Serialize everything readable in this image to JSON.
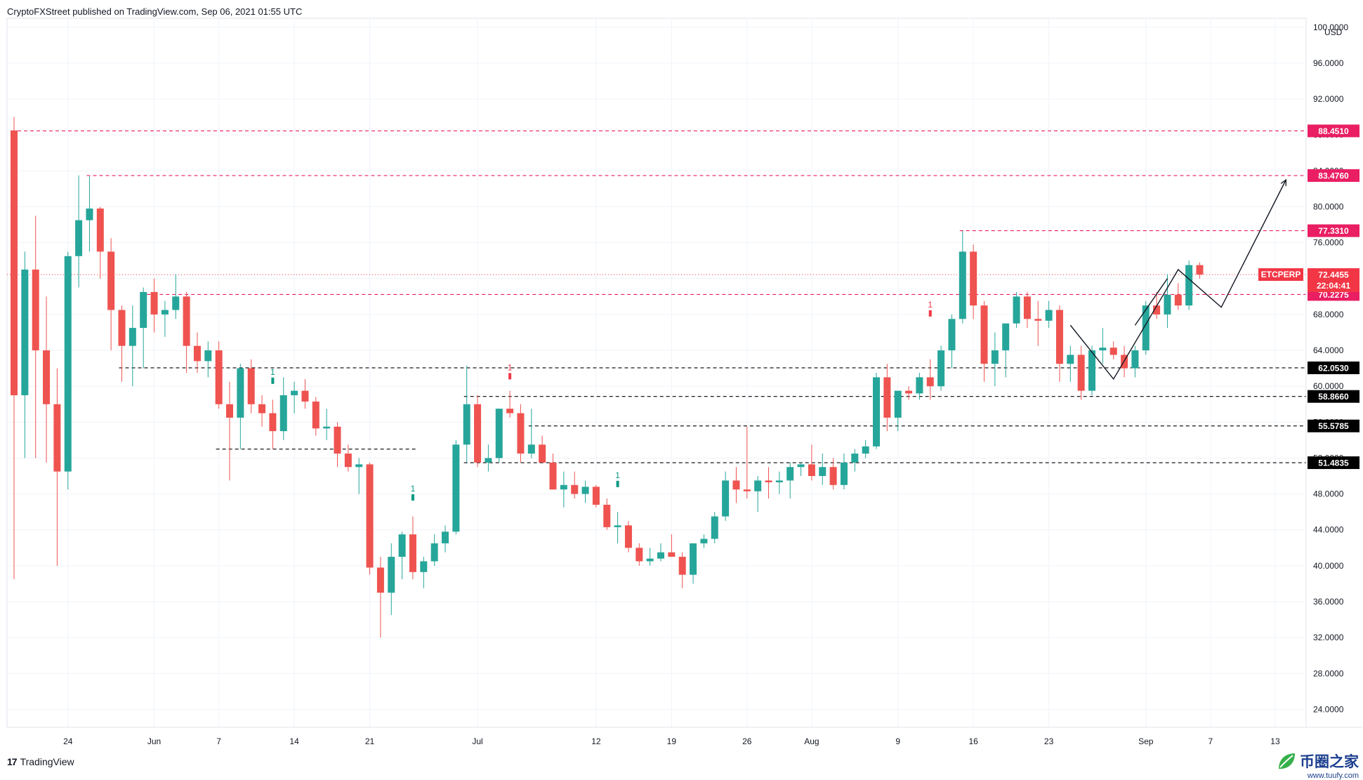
{
  "header": {
    "publisher": "CryptoFXStreet published on TradingView.com, Sep 06, 2021 01:55 UTC"
  },
  "footer": {
    "brand": "TradingView",
    "watermark": "币圈之家",
    "watermark_url": "www.tuufy.com"
  },
  "chart_data": {
    "type": "candlestick",
    "symbol": "ETCPERP",
    "currency": "USD",
    "countdown": "22:04:41",
    "last_price": 72.4455,
    "ylim": [
      22,
      101
    ],
    "y_ticks": [
      24,
      28,
      32,
      36,
      40,
      44,
      48,
      52,
      56,
      60,
      64,
      68,
      72,
      76,
      80,
      84,
      88,
      92,
      96,
      100
    ],
    "y_tick_labels": [
      "24.0000",
      "28.0000",
      "32.0000",
      "36.0000",
      "40.0000",
      "44.0000",
      "48.0000",
      "52.0000",
      "56.0000",
      "60.0000",
      "64.0000",
      "68.0000",
      "72.0000",
      "76.0000",
      "80.0000",
      "84.0000",
      "88.0000",
      "92.0000",
      "96.0000",
      "100.0000"
    ],
    "x_labels": [
      {
        "date": "2021-05-24",
        "label": "24"
      },
      {
        "date": "2021-06-01",
        "label": "Jun"
      },
      {
        "date": "2021-06-07",
        "label": "7"
      },
      {
        "date": "2021-06-14",
        "label": "14"
      },
      {
        "date": "2021-06-21",
        "label": "21"
      },
      {
        "date": "2021-07-01",
        "label": "Jul"
      },
      {
        "date": "2021-07-12",
        "label": "12"
      },
      {
        "date": "2021-07-19",
        "label": "19"
      },
      {
        "date": "2021-07-26",
        "label": "26"
      },
      {
        "date": "2021-08-01",
        "label": "Aug"
      },
      {
        "date": "2021-08-09",
        "label": "9"
      },
      {
        "date": "2021-08-16",
        "label": "16"
      },
      {
        "date": "2021-08-23",
        "label": "23"
      },
      {
        "date": "2021-09-01",
        "label": "Sep"
      },
      {
        "date": "2021-09-07",
        "label": "7"
      },
      {
        "date": "2021-09-13",
        "label": "13"
      }
    ],
    "candles": [
      {
        "date": "2021-05-19",
        "o": 88.5,
        "h": 90.0,
        "l": 38.5,
        "c": 59.0
      },
      {
        "date": "2021-05-20",
        "o": 59.0,
        "h": 75.0,
        "l": 52.0,
        "c": 73.0
      },
      {
        "date": "2021-05-21",
        "o": 73.0,
        "h": 79.0,
        "l": 52.0,
        "c": 64.0
      },
      {
        "date": "2021-05-22",
        "o": 64.0,
        "h": 70.0,
        "l": 51.5,
        "c": 58.0
      },
      {
        "date": "2021-05-23",
        "o": 58.0,
        "h": 62.0,
        "l": 40.0,
        "c": 50.5
      },
      {
        "date": "2021-05-24",
        "o": 50.5,
        "h": 75.0,
        "l": 48.5,
        "c": 74.5
      },
      {
        "date": "2021-05-25",
        "o": 74.5,
        "h": 83.5,
        "l": 71.0,
        "c": 78.5
      },
      {
        "date": "2021-05-26",
        "o": 78.5,
        "h": 83.4,
        "l": 75.0,
        "c": 79.8
      },
      {
        "date": "2021-05-27",
        "o": 79.8,
        "h": 80.0,
        "l": 72.0,
        "c": 75.0
      },
      {
        "date": "2021-05-28",
        "o": 75.0,
        "h": 76.5,
        "l": 64.0,
        "c": 68.5
      },
      {
        "date": "2021-05-29",
        "o": 68.5,
        "h": 69.0,
        "l": 60.5,
        "c": 64.5
      },
      {
        "date": "2021-05-30",
        "o": 64.5,
        "h": 69.0,
        "l": 60.0,
        "c": 66.5
      },
      {
        "date": "2021-05-31",
        "o": 66.5,
        "h": 71.0,
        "l": 62.0,
        "c": 70.5
      },
      {
        "date": "2021-06-01",
        "o": 70.5,
        "h": 72.0,
        "l": 66.0,
        "c": 68.0
      },
      {
        "date": "2021-06-02",
        "o": 68.0,
        "h": 69.5,
        "l": 65.5,
        "c": 68.5
      },
      {
        "date": "2021-06-03",
        "o": 68.5,
        "h": 72.5,
        "l": 67.5,
        "c": 70.0
      },
      {
        "date": "2021-06-04",
        "o": 70.0,
        "h": 70.5,
        "l": 61.5,
        "c": 64.5
      },
      {
        "date": "2021-06-05",
        "o": 64.5,
        "h": 66.0,
        "l": 61.5,
        "c": 62.8
      },
      {
        "date": "2021-06-06",
        "o": 62.8,
        "h": 65.0,
        "l": 61.0,
        "c": 64.0
      },
      {
        "date": "2021-06-07",
        "o": 64.0,
        "h": 65.0,
        "l": 57.5,
        "c": 58.0
      },
      {
        "date": "2021-06-08",
        "o": 58.0,
        "h": 60.5,
        "l": 49.5,
        "c": 56.5
      },
      {
        "date": "2021-06-09",
        "o": 56.5,
        "h": 62.5,
        "l": 53.0,
        "c": 62.0
      },
      {
        "date": "2021-06-10",
        "o": 62.0,
        "h": 63.0,
        "l": 57.0,
        "c": 58.0
      },
      {
        "date": "2021-06-11",
        "o": 58.0,
        "h": 59.0,
        "l": 55.5,
        "c": 57.0
      },
      {
        "date": "2021-06-12",
        "o": 57.0,
        "h": 58.5,
        "l": 53.0,
        "c": 55.0
      },
      {
        "date": "2021-06-13",
        "o": 55.0,
        "h": 61.0,
        "l": 54.0,
        "c": 59.0
      },
      {
        "date": "2021-06-14",
        "o": 59.0,
        "h": 60.5,
        "l": 57.0,
        "c": 59.5
      },
      {
        "date": "2021-06-15",
        "o": 59.5,
        "h": 60.8,
        "l": 57.5,
        "c": 58.3
      },
      {
        "date": "2021-06-16",
        "o": 58.3,
        "h": 58.8,
        "l": 54.5,
        "c": 55.3
      },
      {
        "date": "2021-06-17",
        "o": 55.3,
        "h": 57.5,
        "l": 54.0,
        "c": 55.5
      },
      {
        "date": "2021-06-18",
        "o": 55.5,
        "h": 56.0,
        "l": 51.0,
        "c": 52.5
      },
      {
        "date": "2021-06-19",
        "o": 52.5,
        "h": 53.5,
        "l": 50.5,
        "c": 51.0
      },
      {
        "date": "2021-06-20",
        "o": 51.0,
        "h": 52.0,
        "l": 48.0,
        "c": 51.3
      },
      {
        "date": "2021-06-21",
        "o": 51.3,
        "h": 51.5,
        "l": 39.0,
        "c": 39.8
      },
      {
        "date": "2021-06-22",
        "o": 39.8,
        "h": 41.0,
        "l": 32.0,
        "c": 37.0
      },
      {
        "date": "2021-06-23",
        "o": 37.0,
        "h": 42.5,
        "l": 34.5,
        "c": 41.0
      },
      {
        "date": "2021-06-24",
        "o": 41.0,
        "h": 43.8,
        "l": 38.5,
        "c": 43.5
      },
      {
        "date": "2021-06-25",
        "o": 43.5,
        "h": 45.5,
        "l": 38.5,
        "c": 39.3
      },
      {
        "date": "2021-06-26",
        "o": 39.3,
        "h": 41.0,
        "l": 37.5,
        "c": 40.5
      },
      {
        "date": "2021-06-27",
        "o": 40.5,
        "h": 43.5,
        "l": 40.0,
        "c": 42.5
      },
      {
        "date": "2021-06-28",
        "o": 42.5,
        "h": 44.5,
        "l": 41.5,
        "c": 43.8
      },
      {
        "date": "2021-06-29",
        "o": 43.8,
        "h": 54.0,
        "l": 43.5,
        "c": 53.5
      },
      {
        "date": "2021-06-30",
        "o": 53.5,
        "h": 62.3,
        "l": 51.5,
        "c": 58.0
      },
      {
        "date": "2021-07-01",
        "o": 58.0,
        "h": 59.0,
        "l": 51.0,
        "c": 51.5
      },
      {
        "date": "2021-07-02",
        "o": 51.5,
        "h": 53.5,
        "l": 50.5,
        "c": 52.0
      },
      {
        "date": "2021-07-03",
        "o": 52.0,
        "h": 57.5,
        "l": 51.5,
        "c": 57.5
      },
      {
        "date": "2021-07-04",
        "o": 57.5,
        "h": 59.5,
        "l": 56.5,
        "c": 57.0
      },
      {
        "date": "2021-07-05",
        "o": 57.0,
        "h": 58.0,
        "l": 51.5,
        "c": 52.5
      },
      {
        "date": "2021-07-06",
        "o": 52.5,
        "h": 57.5,
        "l": 52.0,
        "c": 53.5
      },
      {
        "date": "2021-07-07",
        "o": 53.5,
        "h": 54.5,
        "l": 51.5,
        "c": 51.5
      },
      {
        "date": "2021-07-08",
        "o": 51.5,
        "h": 52.5,
        "l": 48.5,
        "c": 48.5
      },
      {
        "date": "2021-07-09",
        "o": 48.5,
        "h": 50.5,
        "l": 46.5,
        "c": 49.0
      },
      {
        "date": "2021-07-10",
        "o": 49.0,
        "h": 50.5,
        "l": 47.5,
        "c": 48.0
      },
      {
        "date": "2021-07-11",
        "o": 48.0,
        "h": 49.5,
        "l": 47.0,
        "c": 48.8
      },
      {
        "date": "2021-07-12",
        "o": 48.8,
        "h": 49.0,
        "l": 46.5,
        "c": 46.8
      },
      {
        "date": "2021-07-13",
        "o": 46.8,
        "h": 47.5,
        "l": 44.0,
        "c": 44.3
      },
      {
        "date": "2021-07-14",
        "o": 44.3,
        "h": 46.0,
        "l": 42.5,
        "c": 44.5
      },
      {
        "date": "2021-07-15",
        "o": 44.5,
        "h": 45.0,
        "l": 41.5,
        "c": 42.0
      },
      {
        "date": "2021-07-16",
        "o": 42.0,
        "h": 42.5,
        "l": 40.0,
        "c": 40.5
      },
      {
        "date": "2021-07-17",
        "o": 40.5,
        "h": 42.0,
        "l": 40.0,
        "c": 40.8
      },
      {
        "date": "2021-07-18",
        "o": 40.8,
        "h": 42.5,
        "l": 40.5,
        "c": 41.5
      },
      {
        "date": "2021-07-19",
        "o": 41.5,
        "h": 43.5,
        "l": 41.0,
        "c": 41.0
      },
      {
        "date": "2021-07-20",
        "o": 41.0,
        "h": 41.5,
        "l": 37.5,
        "c": 39.0
      },
      {
        "date": "2021-07-21",
        "o": 39.0,
        "h": 42.5,
        "l": 38.0,
        "c": 42.5
      },
      {
        "date": "2021-07-22",
        "o": 42.5,
        "h": 43.5,
        "l": 42.0,
        "c": 43.0
      },
      {
        "date": "2021-07-23",
        "o": 43.0,
        "h": 46.0,
        "l": 42.5,
        "c": 45.5
      },
      {
        "date": "2021-07-24",
        "o": 45.5,
        "h": 50.5,
        "l": 45.0,
        "c": 49.5
      },
      {
        "date": "2021-07-25",
        "o": 49.5,
        "h": 51.0,
        "l": 47.0,
        "c": 48.5
      },
      {
        "date": "2021-07-26",
        "o": 48.5,
        "h": 55.5,
        "l": 47.5,
        "c": 48.3
      },
      {
        "date": "2021-07-27",
        "o": 48.3,
        "h": 50.0,
        "l": 46.0,
        "c": 49.5
      },
      {
        "date": "2021-07-28",
        "o": 49.5,
        "h": 51.0,
        "l": 47.5,
        "c": 49.3
      },
      {
        "date": "2021-07-29",
        "o": 49.3,
        "h": 50.5,
        "l": 48.0,
        "c": 49.5
      },
      {
        "date": "2021-07-30",
        "o": 49.5,
        "h": 51.5,
        "l": 47.5,
        "c": 51.0
      },
      {
        "date": "2021-07-31",
        "o": 51.0,
        "h": 51.5,
        "l": 50.0,
        "c": 51.3
      },
      {
        "date": "2021-08-01",
        "o": 51.3,
        "h": 53.5,
        "l": 49.5,
        "c": 50.0
      },
      {
        "date": "2021-08-02",
        "o": 50.0,
        "h": 52.5,
        "l": 49.0,
        "c": 51.0
      },
      {
        "date": "2021-08-03",
        "o": 51.0,
        "h": 52.0,
        "l": 48.5,
        "c": 49.0
      },
      {
        "date": "2021-08-04",
        "o": 49.0,
        "h": 52.5,
        "l": 48.5,
        "c": 51.5
      },
      {
        "date": "2021-08-05",
        "o": 51.5,
        "h": 53.0,
        "l": 50.5,
        "c": 52.5
      },
      {
        "date": "2021-08-06",
        "o": 52.5,
        "h": 54.0,
        "l": 52.0,
        "c": 53.3
      },
      {
        "date": "2021-08-07",
        "o": 53.3,
        "h": 61.5,
        "l": 53.0,
        "c": 61.0
      },
      {
        "date": "2021-08-08",
        "o": 61.0,
        "h": 62.5,
        "l": 55.0,
        "c": 56.5
      },
      {
        "date": "2021-08-09",
        "o": 56.5,
        "h": 59.5,
        "l": 55.0,
        "c": 59.5
      },
      {
        "date": "2021-08-10",
        "o": 59.5,
        "h": 60.0,
        "l": 58.5,
        "c": 59.2
      },
      {
        "date": "2021-08-11",
        "o": 59.2,
        "h": 61.5,
        "l": 58.5,
        "c": 61.0
      },
      {
        "date": "2021-08-12",
        "o": 61.0,
        "h": 63.0,
        "l": 58.5,
        "c": 60.0
      },
      {
        "date": "2021-08-13",
        "o": 60.0,
        "h": 64.5,
        "l": 59.5,
        "c": 64.0
      },
      {
        "date": "2021-08-14",
        "o": 64.0,
        "h": 68.0,
        "l": 62.0,
        "c": 67.5
      },
      {
        "date": "2021-08-15",
        "o": 67.5,
        "h": 77.3,
        "l": 67.0,
        "c": 75.0
      },
      {
        "date": "2021-08-16",
        "o": 75.0,
        "h": 75.8,
        "l": 67.5,
        "c": 69.0
      },
      {
        "date": "2021-08-17",
        "o": 69.0,
        "h": 69.5,
        "l": 60.5,
        "c": 62.5
      },
      {
        "date": "2021-08-18",
        "o": 62.5,
        "h": 66.0,
        "l": 60.0,
        "c": 64.0
      },
      {
        "date": "2021-08-19",
        "o": 64.0,
        "h": 67.0,
        "l": 61.0,
        "c": 67.0
      },
      {
        "date": "2021-08-20",
        "o": 67.0,
        "h": 70.5,
        "l": 66.5,
        "c": 70.0
      },
      {
        "date": "2021-08-21",
        "o": 70.0,
        "h": 70.5,
        "l": 66.5,
        "c": 67.5
      },
      {
        "date": "2021-08-22",
        "o": 67.5,
        "h": 69.5,
        "l": 64.5,
        "c": 67.3
      },
      {
        "date": "2021-08-23",
        "o": 67.3,
        "h": 69.5,
        "l": 66.5,
        "c": 68.5
      },
      {
        "date": "2021-08-24",
        "o": 68.5,
        "h": 69.0,
        "l": 60.5,
        "c": 62.5
      },
      {
        "date": "2021-08-25",
        "o": 62.5,
        "h": 64.5,
        "l": 60.5,
        "c": 63.5
      },
      {
        "date": "2021-08-26",
        "o": 63.5,
        "h": 64.5,
        "l": 58.5,
        "c": 59.5
      },
      {
        "date": "2021-08-27",
        "o": 59.5,
        "h": 64.5,
        "l": 59.0,
        "c": 64.0
      },
      {
        "date": "2021-08-28",
        "o": 64.0,
        "h": 66.5,
        "l": 62.5,
        "c": 64.3
      },
      {
        "date": "2021-08-29",
        "o": 64.3,
        "h": 65.0,
        "l": 63.0,
        "c": 63.5
      },
      {
        "date": "2021-08-30",
        "o": 63.5,
        "h": 64.5,
        "l": 61.0,
        "c": 62.0
      },
      {
        "date": "2021-08-31",
        "o": 62.0,
        "h": 64.5,
        "l": 61.0,
        "c": 64.0
      },
      {
        "date": "2021-09-01",
        "o": 64.0,
        "h": 69.5,
        "l": 63.5,
        "c": 69.0
      },
      {
        "date": "2021-09-02",
        "o": 69.0,
        "h": 70.5,
        "l": 67.5,
        "c": 68.0
      },
      {
        "date": "2021-09-03",
        "o": 68.0,
        "h": 72.5,
        "l": 66.5,
        "c": 70.2
      },
      {
        "date": "2021-09-04",
        "o": 70.2,
        "h": 71.5,
        "l": 68.5,
        "c": 69.0
      },
      {
        "date": "2021-09-05",
        "o": 69.0,
        "h": 74.0,
        "l": 68.5,
        "c": 73.5
      },
      {
        "date": "2021-09-06",
        "o": 73.5,
        "h": 73.8,
        "l": 72.0,
        "c": 72.4455
      }
    ],
    "hlines": [
      {
        "price": 88.451,
        "label": "88.4510",
        "style": "dashed",
        "color": "#e91e63",
        "start_date": "2021-05-19"
      },
      {
        "price": 83.476,
        "label": "83.4760",
        "style": "dashed",
        "color": "#e91e63",
        "start_date": "2021-05-26"
      },
      {
        "price": 77.331,
        "label": "77.3310",
        "style": "dashed",
        "color": "#e91e63",
        "start_date": "2021-08-15"
      },
      {
        "price": 70.2275,
        "label": "70.2275",
        "style": "dashed",
        "color": "#e91e63",
        "start_date": "2021-05-31"
      },
      {
        "price": 62.053,
        "label": "62.0530",
        "style": "dashed",
        "color": "#000000",
        "start_date": "2021-05-29"
      },
      {
        "price": 58.866,
        "label": "58.8660",
        "style": "dashed",
        "color": "#000000",
        "start_date": "2021-06-30"
      },
      {
        "price": 55.5785,
        "label": "55.5785",
        "style": "dashed",
        "color": "#000000",
        "start_date": "2021-07-06"
      },
      {
        "price": 51.4835,
        "label": "51.4835",
        "style": "dashed",
        "color": "#000000",
        "start_date": "2021-06-30"
      },
      {
        "price": 53.0,
        "label": "",
        "style": "dashed",
        "color": "#000000",
        "start_date": "2021-06-07",
        "end_date": "2021-06-25"
      }
    ],
    "signals": [
      {
        "date": "2021-06-12",
        "value": 60.5,
        "label": "1",
        "color": "#089981"
      },
      {
        "date": "2021-06-25",
        "value": 47.5,
        "label": "1",
        "color": "#089981"
      },
      {
        "date": "2021-07-04",
        "value": 61.0,
        "label": "1",
        "color": "#f23645"
      },
      {
        "date": "2021-07-14",
        "value": 49.0,
        "label": "1",
        "color": "#089981"
      },
      {
        "date": "2021-08-12",
        "value": 68.0,
        "label": "1",
        "color": "#f23645"
      }
    ],
    "drawings": [
      {
        "points": [
          [
            "2021-08-25",
            66.8
          ],
          [
            "2021-08-29",
            60.8
          ],
          [
            "2021-09-04",
            73.0
          ],
          [
            "2021-09-08",
            68.8
          ],
          [
            "2021-09-14",
            83.0
          ]
        ],
        "arrow": true
      },
      {
        "points": [
          [
            "2021-08-31",
            66.8
          ],
          [
            "2021-09-03",
            72.0
          ]
        ],
        "arrow": false
      }
    ],
    "colors": {
      "up": "#26a69a",
      "down": "#ef5350",
      "grid": "#f0f3fa",
      "axis": "#e0e3eb",
      "last": "#f23645"
    }
  }
}
